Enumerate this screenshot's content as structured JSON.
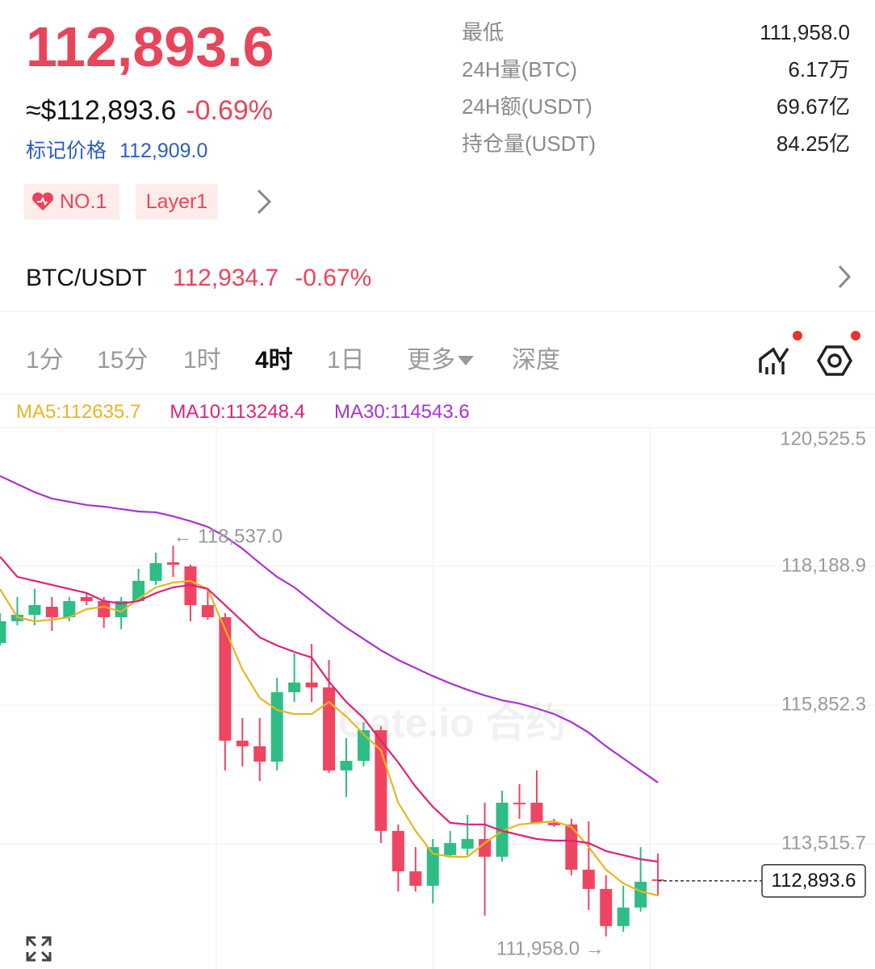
{
  "header": {
    "price": "112,893.6",
    "usd_price": "≈$112,893.6",
    "change": "-0.69%",
    "mark_label": "标记价格",
    "mark_price": "112,909.0",
    "tags": [
      "NO.1",
      "Layer1"
    ]
  },
  "stats": [
    {
      "label": "最低",
      "value": "111,958.0"
    },
    {
      "label": "24H量(BTC)",
      "value": "6.17万"
    },
    {
      "label": "24H额(USDT)",
      "value": "69.67亿"
    },
    {
      "label": "持仓量(USDT)",
      "value": "84.25亿"
    }
  ],
  "spot": {
    "pair": "BTC/USDT",
    "price": "112,934.7",
    "change": "-0.67%"
  },
  "tabs": [
    "1分",
    "15分",
    "1时",
    "4时",
    "1日",
    "更多",
    "深度"
  ],
  "active_tab": 3,
  "chart_data": {
    "type": "candlestick",
    "up_color": "#2ebd85",
    "down_color": "#ef4560",
    "open": [
      116899,
      117265,
      117374,
      117510,
      117333,
      117673,
      117605,
      117333,
      117605,
      117945,
      118257,
      118189,
      117537,
      117333,
      115255,
      115160,
      114902,
      116070,
      116233,
      116152,
      114753,
      114915,
      115431,
      113735,
      113055,
      112811,
      113327,
      113436,
      113599,
      113300,
      114210,
      114210,
      113871,
      113844,
      113082,
      112757,
      112132,
      112445,
      112920
    ],
    "high": [
      117401,
      117673,
      117809,
      117673,
      117673,
      117741,
      117673,
      117673,
      118149,
      118420,
      118537,
      118217,
      117809,
      117401,
      115635,
      115635,
      116315,
      116722,
      116885,
      116613,
      115296,
      115567,
      115499,
      113844,
      113463,
      113599,
      113735,
      114006,
      114210,
      114413,
      114522,
      114753,
      113938,
      113938,
      113898,
      112987,
      112811,
      113463,
      113354
    ],
    "low": [
      116858,
      117197,
      117197,
      117102,
      117265,
      117537,
      117157,
      117130,
      117605,
      117877,
      118013,
      117265,
      117292,
      114753,
      114821,
      114576,
      114753,
      115907,
      115907,
      114712,
      114305,
      114821,
      113531,
      112716,
      112716,
      112513,
      113300,
      113327,
      112309,
      113218,
      113938,
      113871,
      113803,
      112987,
      112404,
      111958,
      112037,
      112377,
      112648
    ],
    "close": [
      117265,
      117374,
      117537,
      117333,
      117605,
      117605,
      117333,
      117605,
      117945,
      118244,
      118217,
      117537,
      117333,
      115255,
      115160,
      114902,
      116070,
      116233,
      116152,
      114753,
      114915,
      115431,
      113735,
      113055,
      112811,
      113463,
      113531,
      113599,
      113300,
      114210,
      114183,
      113871,
      113830,
      113082,
      112757,
      112132,
      112445,
      112879,
      112893.6
    ],
    "series": [
      {
        "name": "MA5:112635.7",
        "color": "#e9b422",
        "values": [
          117809,
          117333,
          117265,
          117292,
          117333,
          117469,
          117510,
          117428,
          117646,
          117836,
          117918,
          117945,
          117809,
          117130,
          116451,
          115975,
          115771,
          115703,
          115703,
          115907,
          115662,
          115363,
          115092,
          114210,
          113735,
          113354,
          113300,
          113300,
          113531,
          113735,
          113844,
          113871,
          113898,
          113803,
          113463,
          113082,
          112851,
          112716,
          112648
        ]
      },
      {
        "name": "MA10:113248.4",
        "color": "#e0207a",
        "values": [
          118352,
          118013,
          117945,
          117877,
          117809,
          117741,
          117605,
          117564,
          117605,
          117741,
          117836,
          117877,
          117809,
          117537,
          117265,
          116994,
          116858,
          116749,
          116654,
          116247,
          115907,
          115635,
          115255,
          114888,
          114480,
          114140,
          113871,
          113844,
          113844,
          113735,
          113668,
          113599,
          113572,
          113572,
          113531,
          113395,
          113327,
          113259,
          113218
        ]
      },
      {
        "name": "MA30:114543.6",
        "color": "#a832d6",
        "values": [
          119711,
          119575,
          119439,
          119331,
          119276,
          119222,
          119195,
          119154,
          119113,
          119100,
          119032,
          118950,
          118855,
          118693,
          118488,
          118244,
          118013,
          117836,
          117605,
          117374,
          117157,
          116967,
          116777,
          116613,
          116478,
          116342,
          116220,
          116111,
          116016,
          115934,
          115880,
          115798,
          115703,
          115567,
          115391,
          115160,
          114956,
          114753,
          114549
        ]
      }
    ],
    "ylim": [
      111410,
      120525.5
    ],
    "yticks": [
      {
        "value": 120525.5,
        "label": "120,525.5"
      },
      {
        "value": 118188.9,
        "label": "118,188.9"
      },
      {
        "value": 115852.3,
        "label": "115,852.3"
      },
      {
        "value": 113515.7,
        "label": "113,515.7"
      }
    ],
    "grid": true,
    "high_marker": {
      "value": 118537,
      "label": "← 118,537.0"
    },
    "low_marker": {
      "value": 111958,
      "label": "111,958.0 →"
    },
    "last_price": {
      "value": 112893.6,
      "label": "112,893.6"
    },
    "watermark": "Gate.io 合约"
  }
}
